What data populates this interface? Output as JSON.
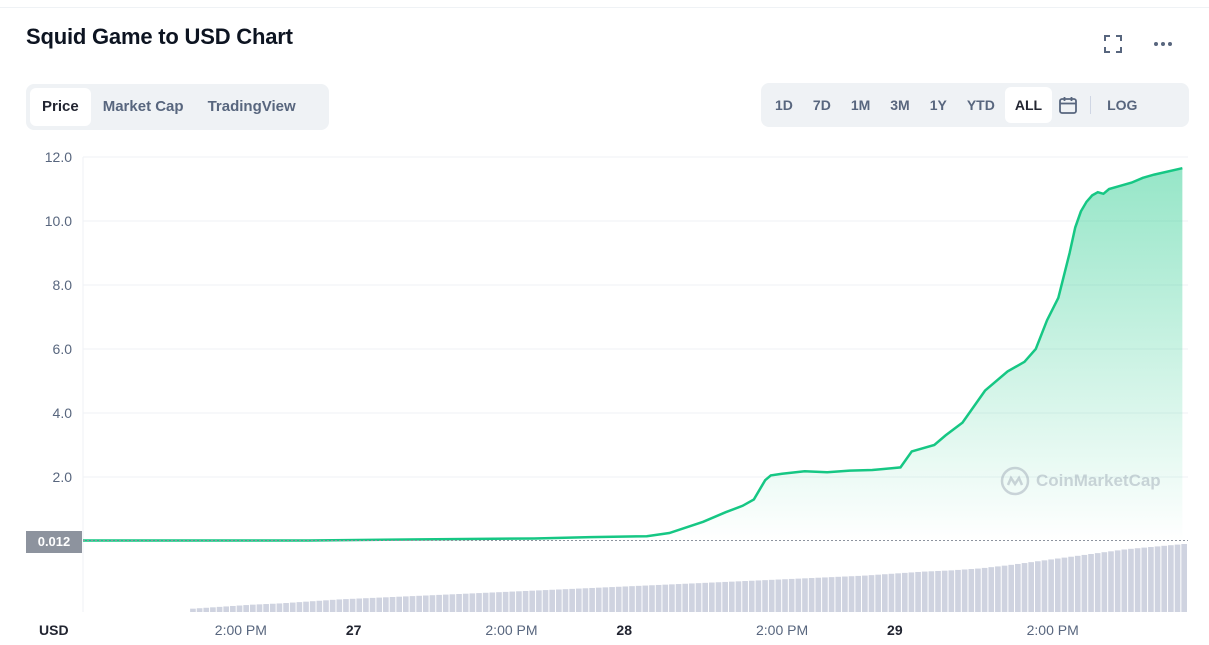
{
  "header": {
    "title": "Squid Game to USD Chart",
    "fullscreen_icon": "fullscreen-icon",
    "more_icon": "more-horizontal-icon"
  },
  "tabs": [
    {
      "label": "Price",
      "active": true
    },
    {
      "label": "Market Cap",
      "active": false
    },
    {
      "label": "TradingView",
      "active": false
    }
  ],
  "ranges": [
    {
      "label": "1D",
      "active": false
    },
    {
      "label": "7D",
      "active": false
    },
    {
      "label": "1M",
      "active": false
    },
    {
      "label": "3M",
      "active": false
    },
    {
      "label": "1Y",
      "active": false
    },
    {
      "label": "YTD",
      "active": false
    },
    {
      "label": "ALL",
      "active": true
    }
  ],
  "calendar_icon": "calendar-icon",
  "log_label": "LOG",
  "current_price_label": "0.012",
  "currency_label": "USD",
  "watermark": "CoinMarketCap",
  "colors": {
    "line": "#16c784",
    "area_top": "#16c784",
    "volume": "#cfd3e0",
    "grid": "#eff2f5",
    "axis_text": "#58667e"
  },
  "chart_data": {
    "type": "area",
    "title": "Squid Game to USD Chart",
    "ylabel": "",
    "xlabel": "",
    "ylim": [
      0,
      12
    ],
    "x_range_hours": [
      0,
      98
    ],
    "y_ticks": [
      "2.0",
      "4.0",
      "6.0",
      "8.0",
      "10.0",
      "12.0"
    ],
    "x_ticks": [
      {
        "label": "2:00 PM",
        "hour": 14
      },
      {
        "label": "27",
        "hour": 24
      },
      {
        "label": "2:00 PM",
        "hour": 38
      },
      {
        "label": "28",
        "hour": 48
      },
      {
        "label": "2:00 PM",
        "hour": 62
      },
      {
        "label": "29",
        "hour": 72
      },
      {
        "label": "2:00 PM",
        "hour": 86
      }
    ],
    "series": [
      {
        "x": [
          9.5,
          20,
          30,
          40,
          45,
          50,
          52,
          55,
          57,
          58.5,
          59.5,
          60.5,
          61,
          62,
          64,
          66,
          68,
          70,
          71,
          72.5,
          73.5,
          75.5,
          76.5,
          78,
          80,
          82,
          83.5,
          84.5,
          85.5,
          86.5,
          87,
          87.5,
          88,
          88.5,
          89,
          89.5,
          90,
          90.5,
          91,
          92,
          93,
          94,
          95,
          97.5
        ],
        "y": [
          0.015,
          0.015,
          0.05,
          0.08,
          0.12,
          0.15,
          0.25,
          0.6,
          0.9,
          1.1,
          1.3,
          1.9,
          2.05,
          2.1,
          2.18,
          2.15,
          2.2,
          2.22,
          2.25,
          2.3,
          2.8,
          3.0,
          3.3,
          3.7,
          4.7,
          5.3,
          5.6,
          6.0,
          6.9,
          7.6,
          8.3,
          9.0,
          9.8,
          10.3,
          10.6,
          10.8,
          10.9,
          10.85,
          11.0,
          11.1,
          11.2,
          11.35,
          11.45,
          11.65
        ]
      }
    ],
    "volume_x_range_hours": [
      9.5,
      98
    ],
    "volume_levels": [
      0.02,
      0.05,
      0.08,
      0.1,
      0.13,
      0.16,
      0.18,
      0.2,
      0.22,
      0.24,
      0.26,
      0.28,
      0.3,
      0.32,
      0.34,
      0.36,
      0.38,
      0.4,
      0.42,
      0.44,
      0.46,
      0.48,
      0.5,
      0.52,
      0.55,
      0.58,
      0.6,
      0.63,
      0.68,
      0.74,
      0.8,
      0.86,
      0.92,
      0.96,
      1.0
    ]
  }
}
